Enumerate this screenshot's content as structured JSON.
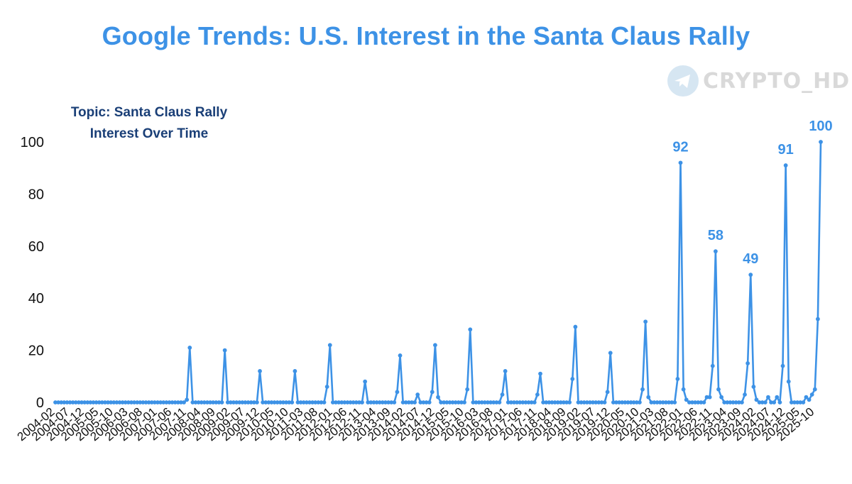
{
  "chart_data": {
    "type": "line",
    "title": "Google Trends: U.S. Interest in the Santa Claus Rally",
    "subtitle": [
      "Topic: Santa Claus Rally",
      "Interest Over Time"
    ],
    "watermark": "CRYPTO_HD",
    "ylim": [
      0,
      100
    ],
    "yticks": [
      0,
      20,
      40,
      60,
      80,
      100
    ],
    "xticks": [
      "2004-02",
      "2004-07",
      "2004-12",
      "2005-05",
      "2005-10",
      "2006-03",
      "2006-08",
      "2007-01",
      "2007-06",
      "2007-11",
      "2008-04",
      "2008-09",
      "2009-02",
      "2009-07",
      "2009-12",
      "2010-05",
      "2010-10",
      "2011-03",
      "2011-08",
      "2012-01",
      "2012-06",
      "2012-11",
      "2013-04",
      "2013-09",
      "2014-02",
      "2014-07",
      "2014-12",
      "2015-05",
      "2015-10",
      "2016-03",
      "2016-08",
      "2017-01",
      "2017-06",
      "2017-11",
      "2018-04",
      "2018-09",
      "2019-02",
      "2019-07",
      "2019-12",
      "2020-05",
      "2020-10",
      "2021-03",
      "2021-08",
      "2022-01",
      "2022-06",
      "2022-11",
      "2023-04",
      "2023-09",
      "2024-02",
      "2024-07",
      "2024-12",
      "2025-05",
      "2025-10"
    ],
    "start": "2004-02",
    "end": "2025-12",
    "points": {
      "2007-11": 1,
      "2007-12": 21,
      "2008-01": 0,
      "2008-11": 0,
      "2008-12": 20,
      "2009-01": 0,
      "2009-11": 0,
      "2009-12": 12,
      "2010-01": 0,
      "2010-11": 0,
      "2010-12": 12,
      "2011-01": 0,
      "2011-11": 6,
      "2011-12": 22,
      "2012-01": 0,
      "2012-11": 0,
      "2012-12": 8,
      "2013-01": 0,
      "2013-11": 4,
      "2013-12": 18,
      "2014-01": 0,
      "2014-06": 3,
      "2014-11": 4,
      "2014-12": 22,
      "2015-01": 2,
      "2015-11": 5,
      "2015-12": 28,
      "2016-01": 0,
      "2016-11": 3,
      "2016-12": 12,
      "2017-01": 0,
      "2017-11": 3,
      "2017-12": 11,
      "2018-01": 0,
      "2018-11": 9,
      "2018-12": 29,
      "2019-01": 0,
      "2019-11": 4,
      "2019-12": 19,
      "2020-01": 0,
      "2020-11": 5,
      "2020-12": 31,
      "2021-01": 2,
      "2021-11": 9,
      "2021-12": 92,
      "2022-01": 5,
      "2022-02": 1,
      "2022-09": 2,
      "2022-10": 2,
      "2022-11": 14,
      "2022-12": 58,
      "2023-01": 5,
      "2023-02": 2,
      "2023-10": 3,
      "2023-11": 15,
      "2023-12": 49,
      "2024-01": 6,
      "2024-02": 1,
      "2024-06": 2,
      "2024-09": 2,
      "2024-11": 14,
      "2024-12": 91,
      "2025-01": 8,
      "2025-07": 2,
      "2025-08": 1,
      "2025-09": 3,
      "2025-10": 5,
      "2025-11": 32,
      "2025-12": 100
    },
    "peak_labels": [
      {
        "date": "2021-12",
        "value": 92,
        "text": "92"
      },
      {
        "date": "2022-12",
        "value": 58,
        "text": "58"
      },
      {
        "date": "2023-12",
        "value": 49,
        "text": "49"
      },
      {
        "date": "2024-12",
        "value": 91,
        "text": "91"
      },
      {
        "date": "2025-12",
        "value": 100,
        "text": "100"
      }
    ],
    "colors": {
      "line": "#3d92e6",
      "title": "#3d92e6",
      "subtitle": "#1a3f77",
      "axis_text": "#111111",
      "peak_label": "#3d92e6"
    }
  }
}
